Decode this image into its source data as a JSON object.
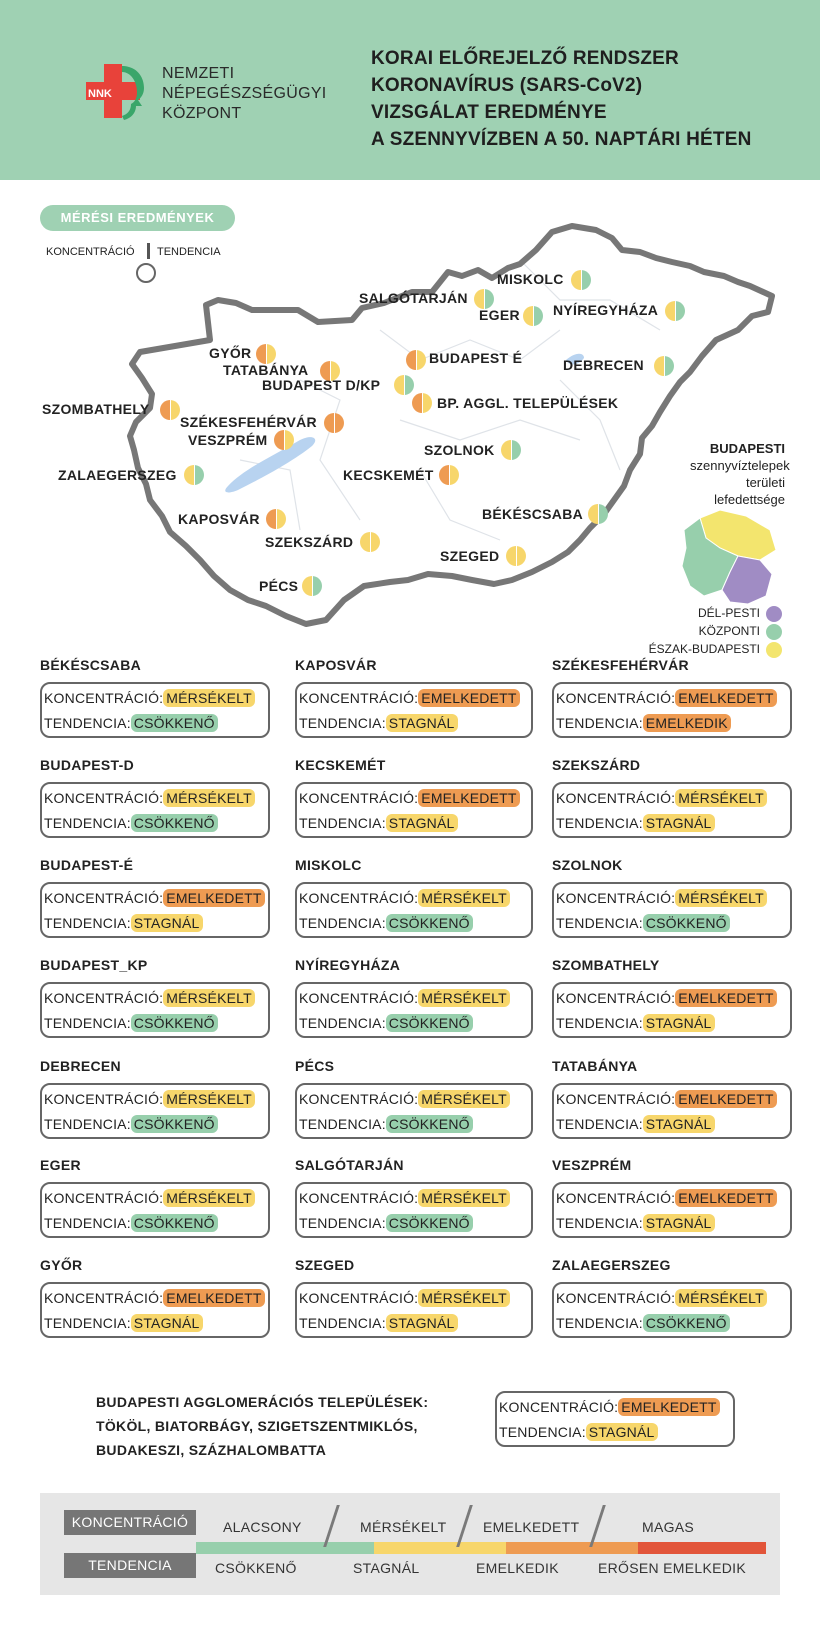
{
  "header": {
    "org_lines": [
      "NEMZETI",
      "NÉPEGÉSZSÉGÜGYI",
      "KÖZPONT"
    ],
    "logo_text": "NNK",
    "title_lines": [
      "KORAI ELŐREJELZŐ RENDSZER",
      "KORONAVÍRUS (SARS-CoV2)",
      "VIZSGÁLAT EREDMÉNYE",
      "A SZENNYVÍZBEN A 50. NAPTÁRI HÉTEN"
    ]
  },
  "map": {
    "results_label": "MÉRÉSI EREDMÉNYEK",
    "concentration_label": "KONCENTRÁCIÓ",
    "trend_label": "TENDENCIA",
    "cities": [
      {
        "name": "MISKOLC",
        "conc": "#f7d66b",
        "trend": "#97cfac"
      },
      {
        "name": "SALGÓTARJÁN",
        "conc": "#f7d66b",
        "trend": "#97cfac"
      },
      {
        "name": "EGER",
        "conc": "#f7d66b",
        "trend": "#97cfac"
      },
      {
        "name": "NYÍREGYHÁZA",
        "conc": "#f7d66b",
        "trend": "#97cfac"
      },
      {
        "name": "GYŐR",
        "conc": "#ee9b52",
        "trend": "#f7d66b"
      },
      {
        "name": "TATABÁNYA",
        "conc": "#ee9b52",
        "trend": "#f7d66b"
      },
      {
        "name": "BUDAPEST É",
        "conc": "#ee9b52",
        "trend": "#f7d66b"
      },
      {
        "name": "BUDAPEST D/KP",
        "conc": "#f7d66b",
        "trend": "#97cfac"
      },
      {
        "name": "DEBRECEN",
        "conc": "#f7d66b",
        "trend": "#97cfac"
      },
      {
        "name": "BP. AGGL. TELEPÜLÉSEK",
        "conc": "#ee9b52",
        "trend": "#f7d66b"
      },
      {
        "name": "SZOMBATHELY",
        "conc": "#ee9b52",
        "trend": "#f7d66b"
      },
      {
        "name": "SZÉKESFEHÉRVÁR",
        "conc": "#ee9b52",
        "trend": "#ee9b52"
      },
      {
        "name": "VESZPRÉM",
        "conc": "#ee9b52",
        "trend": "#f7d66b"
      },
      {
        "name": "SZOLNOK",
        "conc": "#f7d66b",
        "trend": "#97cfac"
      },
      {
        "name": "ZALAEGERSZEG",
        "conc": "#f7d66b",
        "trend": "#97cfac"
      },
      {
        "name": "KECSKEMÉT",
        "conc": "#ee9b52",
        "trend": "#f7d66b"
      },
      {
        "name": "BÉKÉSCSABA",
        "conc": "#f7d66b",
        "trend": "#97cfac"
      },
      {
        "name": "KAPOSVÁR",
        "conc": "#ee9b52",
        "trend": "#f7d66b"
      },
      {
        "name": "SZEKSZÁRD",
        "conc": "#f7d66b",
        "trend": "#f7d66b"
      },
      {
        "name": "SZEGED",
        "conc": "#f7d66b",
        "trend": "#f7d66b"
      },
      {
        "name": "PÉCS",
        "conc": "#f7d66b",
        "trend": "#97cfac"
      }
    ],
    "budapest_coverage_lines": [
      "BUDAPESTI",
      "szennyvíztelepek",
      "területi",
      "lefedettsége"
    ],
    "budapest_legend": [
      {
        "label": "DÉL-PESTI",
        "color": "#a08cc4"
      },
      {
        "label": "KÖZPONTI",
        "color": "#97cfac"
      },
      {
        "label": "ÉSZAK-BUDAPESTI",
        "color": "#f3e56e"
      }
    ]
  },
  "labels": {
    "concentration": "KONCENTRÁCIÓ:",
    "trend": "TENDENCIA:"
  },
  "cards": [
    {
      "city": "BÉKÉSCSABA",
      "conc": "MÉRSÉKELT",
      "trend": "CSÖKKENŐ"
    },
    {
      "city": "KAPOSVÁR",
      "conc": "EMELKEDETT",
      "trend": "STAGNÁL"
    },
    {
      "city": "SZÉKESFEHÉRVÁR",
      "conc": "EMELKEDETT",
      "trend": "EMELKEDIK"
    },
    {
      "city": "BUDAPEST-D",
      "conc": "MÉRSÉKELT",
      "trend": "CSÖKKENŐ"
    },
    {
      "city": "KECSKEMÉT",
      "conc": "EMELKEDETT",
      "trend": "STAGNÁL"
    },
    {
      "city": "SZEKSZÁRD",
      "conc": "MÉRSÉKELT",
      "trend": "STAGNÁL"
    },
    {
      "city": "BUDAPEST-É",
      "conc": "EMELKEDETT",
      "trend": "STAGNÁL"
    },
    {
      "city": "MISKOLC",
      "conc": "MÉRSÉKELT",
      "trend": "CSÖKKENŐ"
    },
    {
      "city": "SZOLNOK",
      "conc": "MÉRSÉKELT",
      "trend": "CSÖKKENŐ"
    },
    {
      "city": "BUDAPEST_KP",
      "conc": "MÉRSÉKELT",
      "trend": "CSÖKKENŐ"
    },
    {
      "city": "NYÍREGYHÁZA",
      "conc": "MÉRSÉKELT",
      "trend": "CSÖKKENŐ"
    },
    {
      "city": "SZOMBATHELY",
      "conc": "EMELKEDETT",
      "trend": "STAGNÁL"
    },
    {
      "city": "DEBRECEN",
      "conc": "MÉRSÉKELT",
      "trend": "CSÖKKENŐ"
    },
    {
      "city": "PÉCS",
      "conc": "MÉRSÉKELT",
      "trend": "CSÖKKENŐ"
    },
    {
      "city": "TATABÁNYA",
      "conc": "EMELKEDETT",
      "trend": "STAGNÁL"
    },
    {
      "city": "EGER",
      "conc": "MÉRSÉKELT",
      "trend": "CSÖKKENŐ"
    },
    {
      "city": "SALGÓTARJÁN",
      "conc": "MÉRSÉKELT",
      "trend": "CSÖKKENŐ"
    },
    {
      "city": "VESZPRÉM",
      "conc": "EMELKEDETT",
      "trend": "STAGNÁL"
    },
    {
      "city": "GYŐR",
      "conc": "EMELKEDETT",
      "trend": "STAGNÁL"
    },
    {
      "city": "SZEGED",
      "conc": "MÉRSÉKELT",
      "trend": "STAGNÁL"
    },
    {
      "city": "ZALAEGERSZEG",
      "conc": "MÉRSÉKELT",
      "trend": "CSÖKKENŐ"
    }
  ],
  "agglomeration": {
    "lines": [
      "BUDAPESTI AGGLOMERÁCIÓS TELEPÜLÉSEK:",
      "TÖKÖL, BIATORBÁGY, SZIGETSZENTMIKLÓS,",
      "BUDAKESZI, SZÁZHALOMBATTA"
    ],
    "conc": "EMELKEDETT",
    "trend": "STAGNÁL"
  },
  "legend": {
    "concentration_label": "KONCENTRÁCIÓ",
    "trend_label": "TENDENCIA",
    "levels": [
      {
        "conc": "ALACSONY",
        "trend": "CSÖKKENŐ",
        "color": "#97cfac"
      },
      {
        "conc": "MÉRSÉKELT",
        "trend": "STAGNÁL",
        "color": "#f7d66b"
      },
      {
        "conc": "EMELKEDETT",
        "trend": "EMELKEDIK",
        "color": "#ee9b52"
      },
      {
        "conc": "MAGAS",
        "trend": "ERŐSEN EMELKEDIK",
        "color": "#e2553a"
      }
    ]
  },
  "colors": {
    "header_bg": "#9fd1b3",
    "low": "#97cfac",
    "moderate": "#f7d66b",
    "elevated": "#ee9b52",
    "high": "#e2553a",
    "logo_red": "#e8423a",
    "logo_green": "#3aa66a"
  }
}
